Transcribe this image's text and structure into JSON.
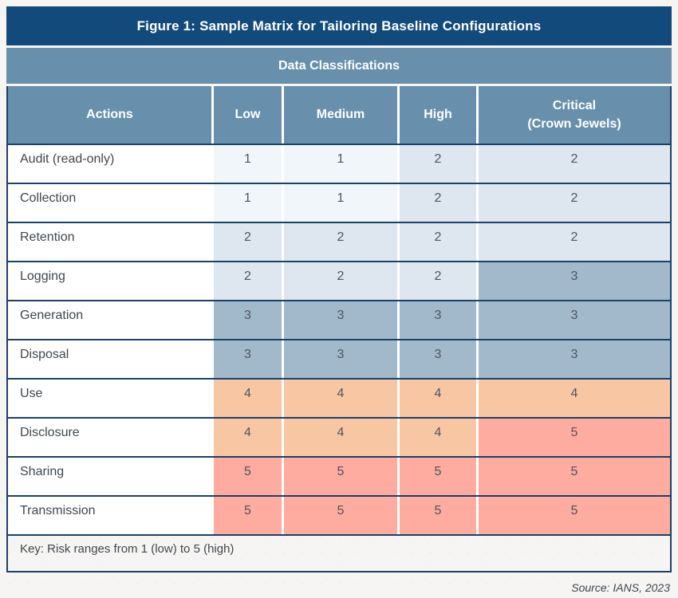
{
  "figure": {
    "title": "Figure 1: Sample Matrix for Tailoring Baseline Configurations",
    "group_header": "Data Classifications",
    "key_note": "Key: Risk ranges from 1 (low) to 5 (high)",
    "source": "Source: IANS, 2023"
  },
  "table": {
    "columns": {
      "actions": "Actions",
      "low": "Low",
      "medium": "Medium",
      "high": "High",
      "critical_line1": "Critical",
      "critical_line2": "(Crown Jewels)"
    },
    "rows": [
      {
        "action": "Audit (read-only)",
        "values": [
          1,
          1,
          2,
          2
        ]
      },
      {
        "action": "Collection",
        "values": [
          1,
          1,
          2,
          2
        ]
      },
      {
        "action": "Retention",
        "values": [
          2,
          2,
          2,
          2
        ]
      },
      {
        "action": "Logging",
        "values": [
          2,
          2,
          2,
          3
        ]
      },
      {
        "action": "Generation",
        "values": [
          3,
          3,
          3,
          3
        ]
      },
      {
        "action": "Disposal",
        "values": [
          3,
          3,
          3,
          3
        ]
      },
      {
        "action": "Use",
        "values": [
          4,
          4,
          4,
          4
        ]
      },
      {
        "action": "Disclosure",
        "values": [
          4,
          4,
          4,
          5
        ]
      },
      {
        "action": "Sharing",
        "values": [
          5,
          5,
          5,
          5
        ]
      },
      {
        "action": "Transmission",
        "values": [
          5,
          5,
          5,
          5
        ]
      }
    ]
  },
  "chart_data": {
    "type": "heatmap",
    "title": "Figure 1: Sample Matrix for Tailoring Baseline Configurations",
    "x_categories": [
      "Low",
      "Medium",
      "High",
      "Critical (Crown Jewels)"
    ],
    "y_categories": [
      "Audit (read-only)",
      "Collection",
      "Retention",
      "Logging",
      "Generation",
      "Disposal",
      "Use",
      "Disclosure",
      "Sharing",
      "Transmission"
    ],
    "values": [
      [
        1,
        1,
        2,
        2
      ],
      [
        1,
        1,
        2,
        2
      ],
      [
        2,
        2,
        2,
        2
      ],
      [
        2,
        2,
        2,
        3
      ],
      [
        3,
        3,
        3,
        3
      ],
      [
        3,
        3,
        3,
        3
      ],
      [
        4,
        4,
        4,
        4
      ],
      [
        4,
        4,
        4,
        5
      ],
      [
        5,
        5,
        5,
        5
      ],
      [
        5,
        5,
        5,
        5
      ]
    ],
    "value_range": [
      1,
      5
    ],
    "legend": "Key: Risk ranges from 1 (low) to 5 (high)",
    "xlabel": "Data Classifications",
    "ylabel": "Actions"
  },
  "colors": {
    "title_bar": "#134a7c",
    "header_bar": "#6890ac",
    "row_border": "#1a4168",
    "risk_1": "#f1f6fa",
    "risk_2": "#dee6f0",
    "risk_3": "#a2b8cb",
    "risk_4": "#f9c6a4",
    "risk_5": "#feaba0"
  }
}
